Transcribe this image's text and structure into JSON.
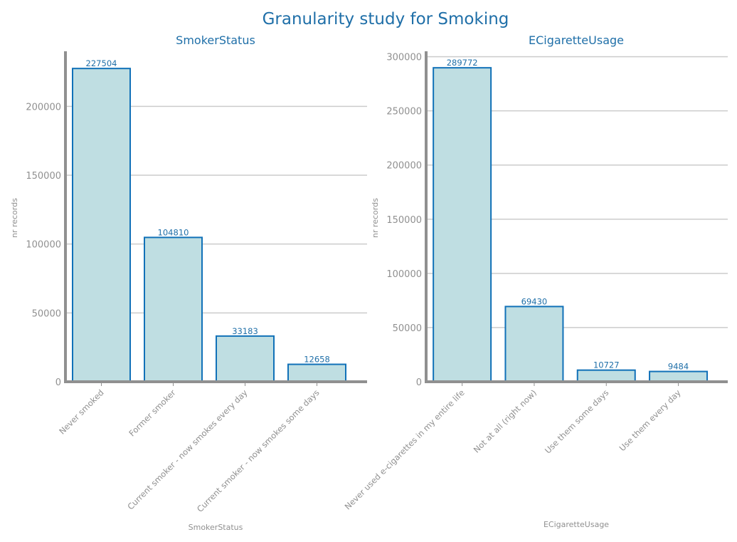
{
  "figure": {
    "title": "Granularity study for Smoking"
  },
  "chart_data": [
    {
      "type": "bar",
      "title": "SmokerStatus",
      "xlabel": "SmokerStatus",
      "ylabel": "nr records",
      "categories": [
        "Never smoked",
        "Former smoker",
        "Current smoker - now smokes every day",
        "Current smoker - now smokes some days"
      ],
      "values": [
        227504,
        104810,
        33183,
        12658
      ],
      "yticks": [
        0,
        50000,
        100000,
        150000,
        200000
      ],
      "ylim": [
        0,
        240000
      ],
      "grid": true,
      "colors": {
        "bar_fill": "#bfdee2",
        "bar_edge": "#1171b8",
        "title": "#1f6fa8"
      }
    },
    {
      "type": "bar",
      "title": "ECigaretteUsage",
      "xlabel": "ECigaretteUsage",
      "ylabel": "nr records",
      "categories": [
        "Never used e-cigarettes in my entire life",
        "Not at all (right now)",
        "Use them some days",
        "Use them every day"
      ],
      "values": [
        289772,
        69430,
        10727,
        9484
      ],
      "yticks": [
        0,
        50000,
        100000,
        150000,
        200000,
        250000,
        300000
      ],
      "ylim": [
        0,
        305000
      ],
      "grid": true,
      "colors": {
        "bar_fill": "#bfdee2",
        "bar_edge": "#1171b8",
        "title": "#1f6fa8"
      }
    }
  ]
}
